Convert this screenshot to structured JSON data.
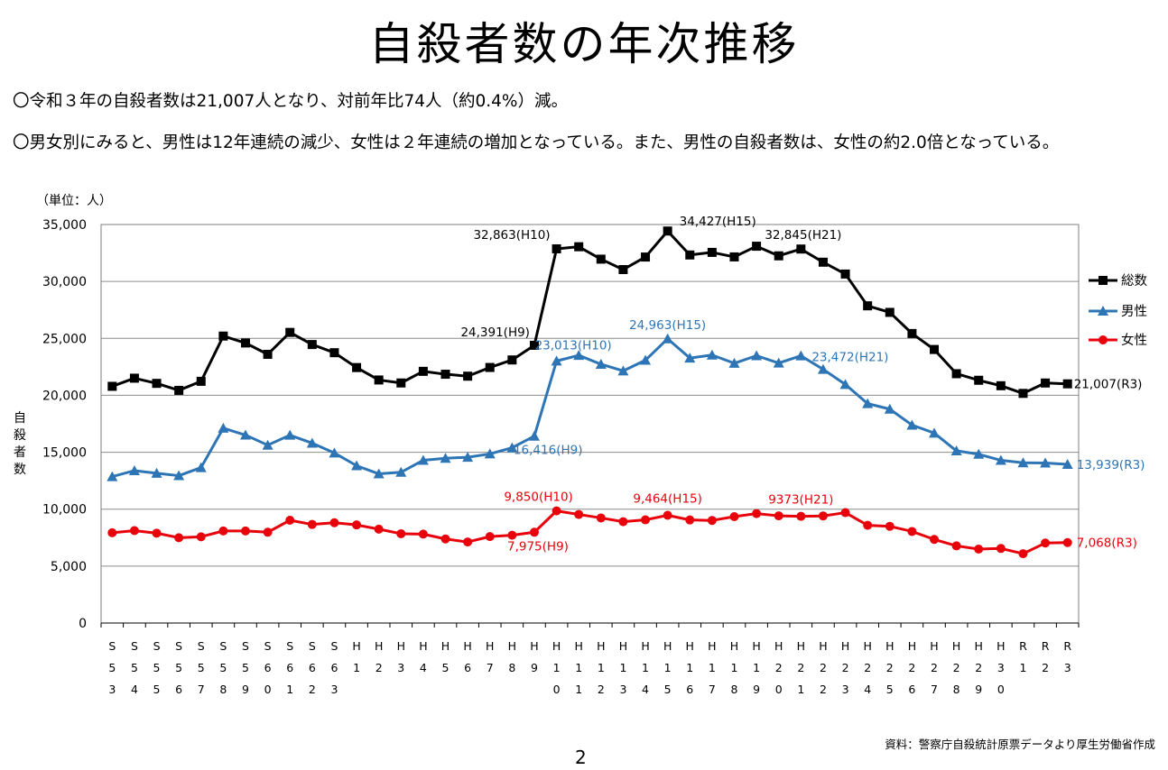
{
  "page": {
    "title": "自殺者数の年次推移",
    "bullet1": "〇令和３年の自殺者数は21,007人となり、対前年比74人（約0.4%）減。",
    "bullet2": "〇男女別にみると、男性は12年連続の減少、女性は２年連続の増加となっている。また、男性の自殺者数は、女性の約2.0倍となっている。",
    "unit": "（単位：人）",
    "source": "資料：警察庁自殺統計原票データより厚生労働省作成",
    "page_number": "2"
  },
  "chart_data": {
    "type": "line",
    "ylabel": "自殺者数",
    "xlabel": "",
    "ylim": [
      0,
      35000
    ],
    "yticks": [
      0,
      5000,
      10000,
      15000,
      20000,
      25000,
      30000,
      35000
    ],
    "ytick_labels": [
      "0",
      "5,000",
      "10,000",
      "15,000",
      "20,000",
      "25,000",
      "30,000",
      "35,000"
    ],
    "grid": "horizontal",
    "legend_position": "right",
    "categories": [
      "S53",
      "S54",
      "S55",
      "S56",
      "S57",
      "S58",
      "S59",
      "S60",
      "S61",
      "S62",
      "S63",
      "H1",
      "H2",
      "H3",
      "H4",
      "H5",
      "H6",
      "H7",
      "H8",
      "H9",
      "H10",
      "H11",
      "H12",
      "H13",
      "H14",
      "H15",
      "H16",
      "H17",
      "H18",
      "H19",
      "H20",
      "H21",
      "H22",
      "H23",
      "H24",
      "H25",
      "H26",
      "H27",
      "H28",
      "H29",
      "H30",
      "R1",
      "R2",
      "R3"
    ],
    "series": [
      {
        "name": "総数",
        "color": "#000000",
        "marker": "square",
        "values": [
          20788,
          21503,
          21048,
          20434,
          21228,
          25202,
          24596,
          23599,
          25524,
          24460,
          23742,
          22436,
          21346,
          21084,
          22104,
          21851,
          21679,
          22445,
          23104,
          24391,
          32863,
          33048,
          31957,
          31042,
          32143,
          34427,
          32325,
          32552,
          32155,
          33093,
          32249,
          32845,
          31690,
          30651,
          27858,
          27283,
          25427,
          24025,
          21897,
          21321,
          20840,
          20169,
          21081,
          21007
        ]
      },
      {
        "name": "男性",
        "color": "#2E75B6",
        "marker": "triangle",
        "values": [
          12859,
          13386,
          13155,
          12942,
          13654,
          17116,
          16508,
          15624,
          16497,
          15802,
          14934,
          13818,
          13102,
          13242,
          14296,
          14468,
          14560,
          14853,
          15393,
          16416,
          23013,
          23512,
          22727,
          22144,
          23080,
          24963,
          23272,
          23540,
          22813,
          23478,
          22831,
          23472,
          22283,
          20955,
          19273,
          18787,
          17386,
          16681,
          15121,
          14826,
          14290,
          14078,
          14055,
          13939
        ]
      },
      {
        "name": "女性",
        "color": "#E8000B",
        "marker": "circle",
        "values": [
          7929,
          8117,
          7893,
          7492,
          7574,
          8086,
          8088,
          7975,
          9027,
          8658,
          8808,
          8618,
          8244,
          7842,
          7808,
          7383,
          7119,
          7592,
          7711,
          7975,
          9850,
          9536,
          9230,
          8898,
          9063,
          9464,
          9053,
          9012,
          9342,
          9615,
          9418,
          9373,
          9407,
          9696,
          8585,
          8496,
          8041,
          7344,
          6776,
          6495,
          6550,
          6091,
          7026,
          7068
        ]
      }
    ],
    "annotations": [
      {
        "series": 0,
        "index": 19,
        "text": "24,391(H9)"
      },
      {
        "series": 0,
        "index": 20,
        "text": "32,863(H10)"
      },
      {
        "series": 0,
        "index": 25,
        "text": "34,427(H15)"
      },
      {
        "series": 0,
        "index": 31,
        "text": "32,845(H21)"
      },
      {
        "series": 0,
        "index": 43,
        "text": "21,007(R3)"
      },
      {
        "series": 1,
        "index": 19,
        "text": "16,416(H9)"
      },
      {
        "series": 1,
        "index": 20,
        "text": "23,013(H10)"
      },
      {
        "series": 1,
        "index": 25,
        "text": "24,963(H15)"
      },
      {
        "series": 1,
        "index": 31,
        "text": "23,472(H21)"
      },
      {
        "series": 1,
        "index": 43,
        "text": "13,939(R3)"
      },
      {
        "series": 2,
        "index": 19,
        "text": "7,975(H9)"
      },
      {
        "series": 2,
        "index": 20,
        "text": "9,850(H10)"
      },
      {
        "series": 2,
        "index": 25,
        "text": "9,464(H15)"
      },
      {
        "series": 2,
        "index": 31,
        "text": "9373(H21)"
      },
      {
        "series": 2,
        "index": 43,
        "text": "7,068(R3)"
      }
    ]
  }
}
